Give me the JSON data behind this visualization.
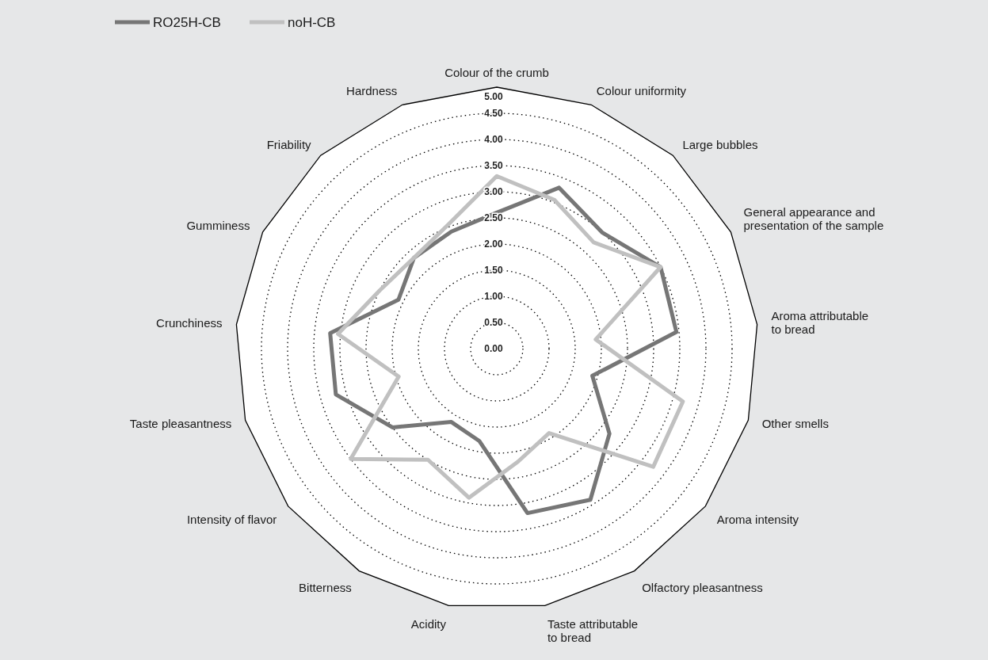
{
  "chart_data": {
    "type": "radar",
    "categories": [
      "Colour of the crumb",
      "Colour uniformity",
      "Large bubbles",
      "General appearance and\npresentation of the sample",
      "Aroma attributable\nto bread",
      "Other smells",
      "Aroma intensity",
      "Olfactory pleasantness",
      "Taste attributable\nto bread",
      "Acidity",
      "Bitterness",
      "Intensity of flavor",
      "Taste pleasantness",
      "Crunchiness",
      "Gumminess",
      "Friability",
      "Hardness"
    ],
    "series": [
      {
        "name": "RO25H-CB",
        "color": "#767676",
        "values": [
          2.6,
          3.3,
          3.0,
          3.5,
          3.45,
          1.9,
          2.7,
          3.4,
          3.2,
          1.8,
          1.65,
          2.5,
          3.2,
          3.2,
          2.1,
          2.35,
          2.4
        ]
      },
      {
        "name": "noH-CB",
        "color": "#c0c0c0",
        "values": [
          3.3,
          3.05,
          2.75,
          3.5,
          1.9,
          3.7,
          3.75,
          1.9,
          2.2,
          2.9,
          2.5,
          3.5,
          1.95,
          3.05,
          2.5,
          2.35,
          2.55
        ]
      }
    ],
    "ylim": [
      0,
      5
    ],
    "yticks": [
      {
        "value": 0,
        "label": "0.00"
      },
      {
        "value": 0.5,
        "label": "0.50"
      },
      {
        "value": 1,
        "label": "1.00"
      },
      {
        "value": 1.5,
        "label": "1.50"
      },
      {
        "value": 2,
        "label": "2.00"
      },
      {
        "value": 2.5,
        "label": "2.50"
      },
      {
        "value": 3,
        "label": "3.00"
      },
      {
        "value": 3.5,
        "label": "3.50"
      },
      {
        "value": 4,
        "label": "4.00"
      },
      {
        "value": 4.5,
        "label": "4.50"
      },
      {
        "value": 5,
        "label": "5.00"
      }
    ],
    "grid": true,
    "legend": "top left"
  }
}
